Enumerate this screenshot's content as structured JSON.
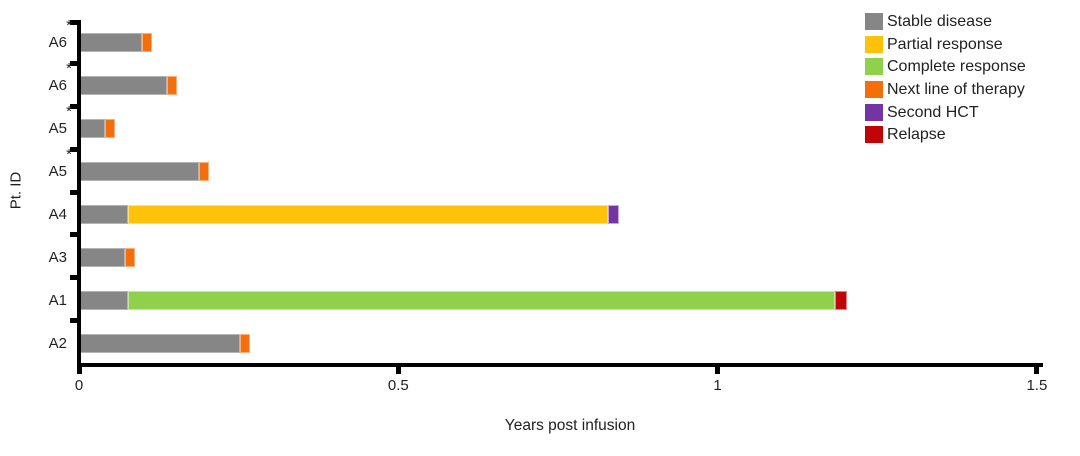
{
  "figure": {
    "asterisk_marker": "*"
  },
  "chart_data": {
    "type": "bar",
    "orientation": "horizontal",
    "stacked": true,
    "title": "",
    "xlabel": "Years post infusion",
    "ylabel": "Pt. ID",
    "xlim": [
      0,
      1.5
    ],
    "x_ticks": [
      0,
      0.5,
      1,
      1.5
    ],
    "x_tick_labels": [
      "0",
      "0.5",
      "1",
      "1.5"
    ],
    "grid": false,
    "legend_position": "top-right",
    "categories": [
      "A6",
      "A6",
      "A5",
      "A5",
      "A4",
      "A3",
      "A1",
      "A2"
    ],
    "row_asterisk": [
      true,
      true,
      true,
      true,
      false,
      false,
      false,
      false
    ],
    "series": [
      {
        "name": "Stable disease",
        "color": "#868686",
        "border_color": "#B3B3B3",
        "values": [
          0.099,
          0.138,
          0.041,
          0.188,
          0.077,
          0.072,
          0.077,
          0.252
        ]
      },
      {
        "name": "Partial response",
        "color": "#FEC20B",
        "border_color": "#FEDE8C",
        "values": [
          0,
          0,
          0,
          0,
          0.751,
          0,
          0,
          0
        ]
      },
      {
        "name": "Complete response",
        "color": "#8FD04C",
        "border_color": "#C6E5A5",
        "values": [
          0,
          0,
          0,
          0,
          0,
          0,
          1.107,
          0
        ]
      },
      {
        "name": "Next line of therapy",
        "color": "#F56E0C",
        "border_color": "#FAB07D",
        "values": [
          0.016,
          0.016,
          0.016,
          0.015,
          0,
          0.016,
          0,
          0.015
        ]
      },
      {
        "name": "Second HCT",
        "color": "#7434A2",
        "border_color": "#C9A6DF",
        "values": [
          0,
          0,
          0,
          0,
          0.017,
          0,
          0,
          0
        ]
      },
      {
        "name": "Relapse",
        "color": "#C00508",
        "border_color": "#E08486",
        "values": [
          0,
          0,
          0,
          0,
          0,
          0,
          0.018,
          0
        ]
      }
    ]
  }
}
